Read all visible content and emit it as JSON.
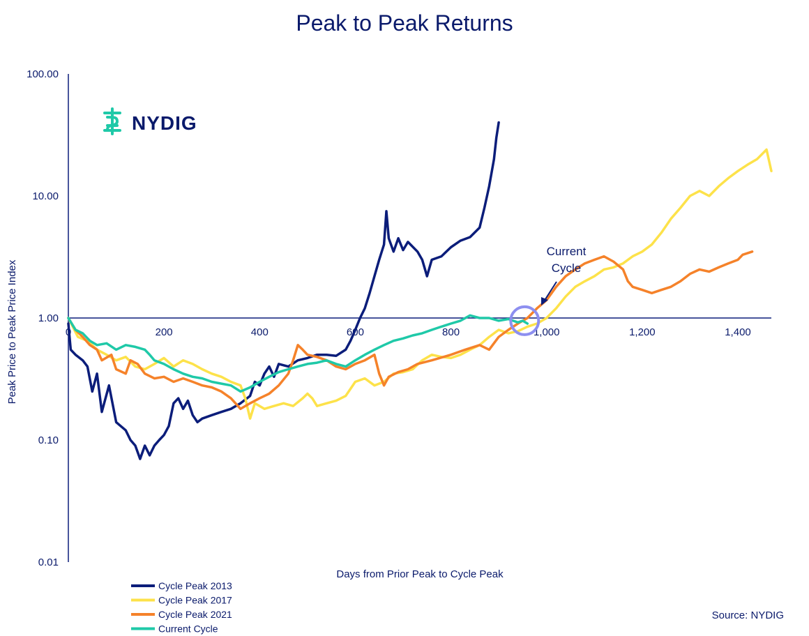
{
  "colors": {
    "navy": "#0b1d7a",
    "yellow": "#fde24a",
    "orange": "#f5822a",
    "teal": "#1fc9a8",
    "highlight": "#8d8ff0",
    "text": "#0a1a6b"
  },
  "logo": {
    "text": "NYDIG",
    "icon": "nydig-logo-icon"
  },
  "source": "Source: NYDIG",
  "chart_data": {
    "type": "line",
    "title": "Peak to Peak Returns",
    "xlabel": "Days from Prior Peak to Cycle Peak",
    "ylabel": "Peak Price to Peak Price Index",
    "yscale": "log",
    "xlim": [
      0,
      1470
    ],
    "ylim": [
      0.01,
      100
    ],
    "x_ticks": [
      0,
      200,
      400,
      600,
      800,
      1000,
      1200,
      1400
    ],
    "x_tick_labels": [
      "0",
      "200",
      "400",
      "600",
      "800",
      "1,000",
      "1,200",
      "1,400"
    ],
    "y_ticks": [
      0.01,
      0.1,
      1,
      10,
      100
    ],
    "y_tick_labels": [
      "0.01",
      "0.10",
      "1.00",
      "10.00",
      "100.00"
    ],
    "grid": false,
    "legend_position": "bottom-left",
    "annotation": {
      "text_line1": "Current",
      "text_line2": "Cycle",
      "x": 960,
      "y": 0.95
    },
    "series": [
      {
        "name": "Cycle Peak 2013",
        "color": "#0b1d7a",
        "points": [
          [
            0,
            0.9
          ],
          [
            5,
            0.55
          ],
          [
            15,
            0.5
          ],
          [
            30,
            0.45
          ],
          [
            40,
            0.4
          ],
          [
            50,
            0.25
          ],
          [
            60,
            0.35
          ],
          [
            70,
            0.17
          ],
          [
            85,
            0.28
          ],
          [
            100,
            0.14
          ],
          [
            120,
            0.12
          ],
          [
            130,
            0.1
          ],
          [
            140,
            0.09
          ],
          [
            150,
            0.07
          ],
          [
            160,
            0.09
          ],
          [
            170,
            0.075
          ],
          [
            180,
            0.09
          ],
          [
            190,
            0.1
          ],
          [
            200,
            0.11
          ],
          [
            210,
            0.13
          ],
          [
            220,
            0.2
          ],
          [
            230,
            0.22
          ],
          [
            240,
            0.18
          ],
          [
            250,
            0.21
          ],
          [
            260,
            0.16
          ],
          [
            270,
            0.14
          ],
          [
            280,
            0.15
          ],
          [
            300,
            0.16
          ],
          [
            320,
            0.17
          ],
          [
            340,
            0.18
          ],
          [
            360,
            0.2
          ],
          [
            380,
            0.23
          ],
          [
            390,
            0.3
          ],
          [
            400,
            0.28
          ],
          [
            410,
            0.35
          ],
          [
            420,
            0.4
          ],
          [
            430,
            0.33
          ],
          [
            440,
            0.42
          ],
          [
            460,
            0.4
          ],
          [
            480,
            0.45
          ],
          [
            500,
            0.47
          ],
          [
            520,
            0.5
          ],
          [
            540,
            0.5
          ],
          [
            560,
            0.49
          ],
          [
            580,
            0.55
          ],
          [
            590,
            0.65
          ],
          [
            600,
            0.8
          ],
          [
            610,
            1.0
          ],
          [
            620,
            1.2
          ],
          [
            630,
            1.6
          ],
          [
            640,
            2.2
          ],
          [
            650,
            3.0
          ],
          [
            660,
            4.0
          ],
          [
            665,
            7.5
          ],
          [
            670,
            4.5
          ],
          [
            680,
            3.5
          ],
          [
            690,
            4.5
          ],
          [
            700,
            3.6
          ],
          [
            710,
            4.2
          ],
          [
            730,
            3.5
          ],
          [
            740,
            3.0
          ],
          [
            750,
            2.2
          ],
          [
            760,
            3.0
          ],
          [
            780,
            3.2
          ],
          [
            800,
            3.8
          ],
          [
            820,
            4.3
          ],
          [
            840,
            4.6
          ],
          [
            860,
            5.5
          ],
          [
            870,
            8.0
          ],
          [
            880,
            12
          ],
          [
            890,
            20
          ],
          [
            895,
            30
          ],
          [
            900,
            40
          ]
        ]
      },
      {
        "name": "Cycle Peak 2017",
        "color": "#fde24a",
        "points": [
          [
            0,
            1.0
          ],
          [
            20,
            0.7
          ],
          [
            40,
            0.65
          ],
          [
            60,
            0.55
          ],
          [
            80,
            0.5
          ],
          [
            100,
            0.45
          ],
          [
            120,
            0.48
          ],
          [
            140,
            0.4
          ],
          [
            160,
            0.38
          ],
          [
            180,
            0.42
          ],
          [
            200,
            0.47
          ],
          [
            220,
            0.4
          ],
          [
            240,
            0.45
          ],
          [
            260,
            0.42
          ],
          [
            280,
            0.38
          ],
          [
            300,
            0.35
          ],
          [
            320,
            0.33
          ],
          [
            340,
            0.3
          ],
          [
            360,
            0.28
          ],
          [
            370,
            0.22
          ],
          [
            380,
            0.15
          ],
          [
            390,
            0.2
          ],
          [
            410,
            0.18
          ],
          [
            430,
            0.19
          ],
          [
            450,
            0.2
          ],
          [
            470,
            0.19
          ],
          [
            490,
            0.22
          ],
          [
            500,
            0.24
          ],
          [
            510,
            0.22
          ],
          [
            520,
            0.19
          ],
          [
            540,
            0.2
          ],
          [
            560,
            0.21
          ],
          [
            580,
            0.23
          ],
          [
            600,
            0.3
          ],
          [
            620,
            0.32
          ],
          [
            640,
            0.28
          ],
          [
            660,
            0.3
          ],
          [
            680,
            0.35
          ],
          [
            700,
            0.36
          ],
          [
            720,
            0.38
          ],
          [
            740,
            0.45
          ],
          [
            760,
            0.5
          ],
          [
            780,
            0.48
          ],
          [
            800,
            0.47
          ],
          [
            820,
            0.5
          ],
          [
            840,
            0.55
          ],
          [
            860,
            0.6
          ],
          [
            880,
            0.7
          ],
          [
            900,
            0.8
          ],
          [
            920,
            0.75
          ],
          [
            940,
            0.78
          ],
          [
            960,
            0.85
          ],
          [
            980,
            0.9
          ],
          [
            1000,
            1.0
          ],
          [
            1020,
            1.2
          ],
          [
            1040,
            1.5
          ],
          [
            1060,
            1.8
          ],
          [
            1080,
            2.0
          ],
          [
            1100,
            2.2
          ],
          [
            1120,
            2.5
          ],
          [
            1140,
            2.6
          ],
          [
            1160,
            2.8
          ],
          [
            1180,
            3.2
          ],
          [
            1200,
            3.5
          ],
          [
            1220,
            4.0
          ],
          [
            1240,
            5.0
          ],
          [
            1260,
            6.5
          ],
          [
            1280,
            8.0
          ],
          [
            1300,
            10.0
          ],
          [
            1320,
            11.0
          ],
          [
            1340,
            10.0
          ],
          [
            1360,
            12.0
          ],
          [
            1380,
            14.0
          ],
          [
            1400,
            16.0
          ],
          [
            1420,
            18.0
          ],
          [
            1440,
            20.0
          ],
          [
            1460,
            24.0
          ],
          [
            1470,
            16.0
          ]
        ]
      },
      {
        "name": "Cycle Peak 2021",
        "color": "#f5822a",
        "points": [
          [
            0,
            1.0
          ],
          [
            15,
            0.8
          ],
          [
            30,
            0.7
          ],
          [
            45,
            0.6
          ],
          [
            60,
            0.55
          ],
          [
            70,
            0.45
          ],
          [
            90,
            0.5
          ],
          [
            100,
            0.38
          ],
          [
            120,
            0.35
          ],
          [
            130,
            0.45
          ],
          [
            145,
            0.42
          ],
          [
            160,
            0.35
          ],
          [
            180,
            0.32
          ],
          [
            200,
            0.33
          ],
          [
            220,
            0.3
          ],
          [
            240,
            0.32
          ],
          [
            260,
            0.3
          ],
          [
            280,
            0.28
          ],
          [
            300,
            0.27
          ],
          [
            320,
            0.25
          ],
          [
            340,
            0.22
          ],
          [
            360,
            0.18
          ],
          [
            380,
            0.2
          ],
          [
            400,
            0.22
          ],
          [
            420,
            0.24
          ],
          [
            440,
            0.28
          ],
          [
            460,
            0.35
          ],
          [
            470,
            0.45
          ],
          [
            480,
            0.6
          ],
          [
            490,
            0.55
          ],
          [
            500,
            0.5
          ],
          [
            520,
            0.48
          ],
          [
            540,
            0.45
          ],
          [
            560,
            0.4
          ],
          [
            580,
            0.38
          ],
          [
            600,
            0.42
          ],
          [
            620,
            0.45
          ],
          [
            640,
            0.5
          ],
          [
            650,
            0.35
          ],
          [
            660,
            0.28
          ],
          [
            670,
            0.33
          ],
          [
            690,
            0.36
          ],
          [
            710,
            0.38
          ],
          [
            730,
            0.42
          ],
          [
            760,
            0.45
          ],
          [
            800,
            0.5
          ],
          [
            830,
            0.55
          ],
          [
            860,
            0.6
          ],
          [
            880,
            0.55
          ],
          [
            900,
            0.7
          ],
          [
            920,
            0.8
          ],
          [
            940,
            0.9
          ],
          [
            960,
            1.0
          ],
          [
            980,
            1.2
          ],
          [
            1000,
            1.4
          ],
          [
            1020,
            1.8
          ],
          [
            1040,
            2.2
          ],
          [
            1060,
            2.5
          ],
          [
            1080,
            2.8
          ],
          [
            1100,
            3.0
          ],
          [
            1120,
            3.2
          ],
          [
            1140,
            2.9
          ],
          [
            1160,
            2.5
          ],
          [
            1170,
            2.0
          ],
          [
            1180,
            1.8
          ],
          [
            1200,
            1.7
          ],
          [
            1220,
            1.6
          ],
          [
            1240,
            1.7
          ],
          [
            1260,
            1.8
          ],
          [
            1280,
            2.0
          ],
          [
            1300,
            2.3
          ],
          [
            1320,
            2.5
          ],
          [
            1340,
            2.4
          ],
          [
            1360,
            2.6
          ],
          [
            1380,
            2.8
          ],
          [
            1400,
            3.0
          ],
          [
            1410,
            3.3
          ],
          [
            1430,
            3.5
          ]
        ]
      },
      {
        "name": "Current Cycle",
        "color": "#1fc9a8",
        "points": [
          [
            0,
            1.0
          ],
          [
            15,
            0.8
          ],
          [
            30,
            0.75
          ],
          [
            45,
            0.65
          ],
          [
            60,
            0.6
          ],
          [
            80,
            0.62
          ],
          [
            100,
            0.55
          ],
          [
            120,
            0.6
          ],
          [
            140,
            0.58
          ],
          [
            160,
            0.55
          ],
          [
            170,
            0.5
          ],
          [
            180,
            0.45
          ],
          [
            200,
            0.42
          ],
          [
            220,
            0.38
          ],
          [
            240,
            0.35
          ],
          [
            260,
            0.33
          ],
          [
            280,
            0.32
          ],
          [
            300,
            0.3
          ],
          [
            320,
            0.29
          ],
          [
            340,
            0.28
          ],
          [
            360,
            0.25
          ],
          [
            380,
            0.27
          ],
          [
            400,
            0.3
          ],
          [
            420,
            0.33
          ],
          [
            440,
            0.36
          ],
          [
            460,
            0.38
          ],
          [
            480,
            0.4
          ],
          [
            500,
            0.42
          ],
          [
            520,
            0.43
          ],
          [
            540,
            0.45
          ],
          [
            560,
            0.42
          ],
          [
            580,
            0.4
          ],
          [
            600,
            0.45
          ],
          [
            620,
            0.5
          ],
          [
            640,
            0.55
          ],
          [
            660,
            0.6
          ],
          [
            680,
            0.65
          ],
          [
            700,
            0.68
          ],
          [
            720,
            0.72
          ],
          [
            740,
            0.75
          ],
          [
            760,
            0.8
          ],
          [
            780,
            0.85
          ],
          [
            800,
            0.9
          ],
          [
            820,
            0.95
          ],
          [
            840,
            1.05
          ],
          [
            860,
            1.0
          ],
          [
            880,
            1.0
          ],
          [
            900,
            0.95
          ],
          [
            920,
            0.98
          ],
          [
            940,
            0.92
          ],
          [
            950,
            0.95
          ],
          [
            960,
            0.9
          ]
        ]
      }
    ]
  }
}
